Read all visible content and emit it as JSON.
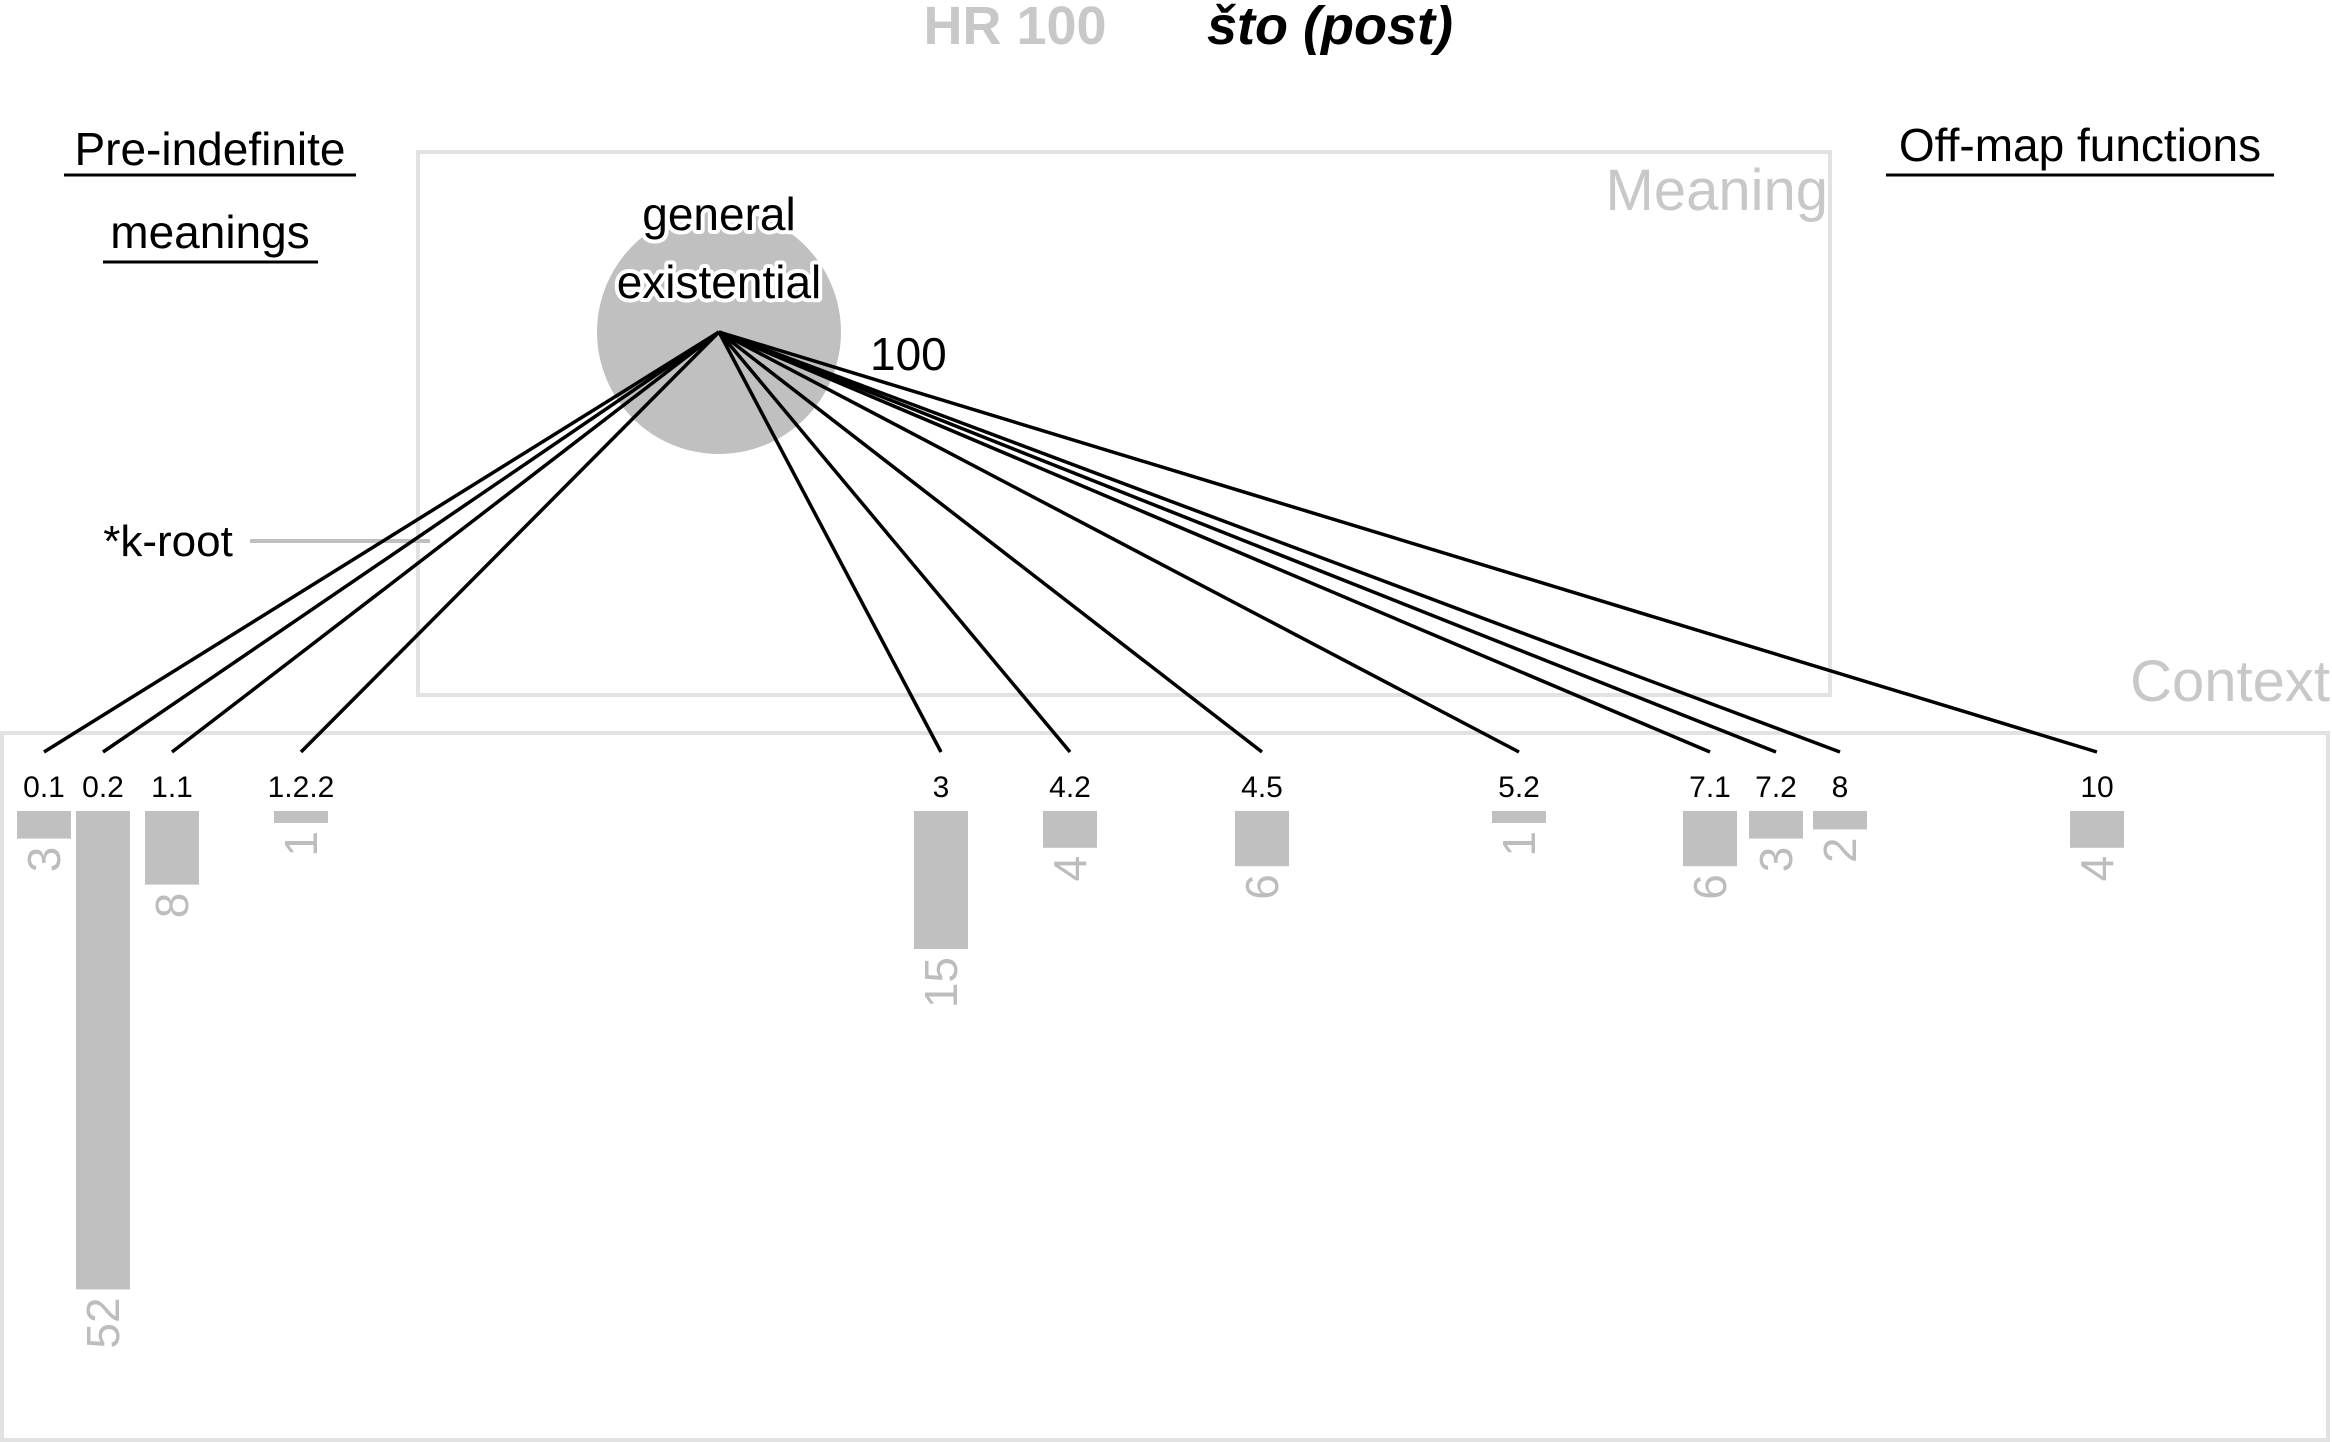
{
  "title": {
    "id": "HR 100",
    "word": "što (post)"
  },
  "left_heading": [
    "Pre-indefinite",
    "meanings"
  ],
  "right_heading": "Off-map functions",
  "meaning_panel_label": "Meaning",
  "context_panel_label": "Context",
  "root_label": "*k-root",
  "colors": {
    "bar": "#c0c0c0",
    "panel_border": "#e2e2e2",
    "line": "#000000"
  },
  "chart_data": {
    "type": "bar",
    "meaning_node": {
      "label": [
        "general",
        "existential"
      ],
      "total": 100
    },
    "categories": [
      "0.1",
      "0.2",
      "1.1",
      "1.2.2",
      "3",
      "4.2",
      "4.5",
      "5.2",
      "7.1",
      "7.2",
      "8",
      "10"
    ],
    "values": [
      3,
      52,
      8,
      1,
      15,
      4,
      6,
      1,
      6,
      3,
      2,
      4
    ]
  }
}
